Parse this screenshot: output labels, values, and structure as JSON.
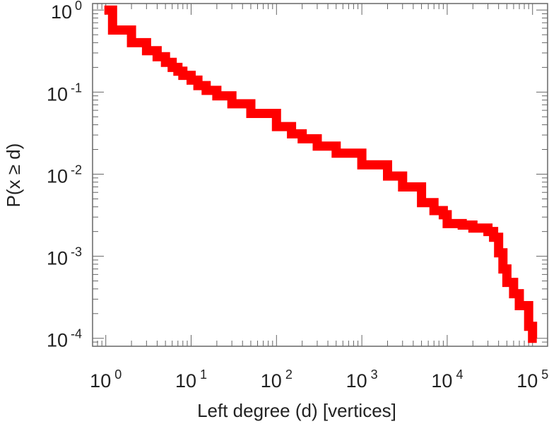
{
  "chart_data": {
    "type": "line",
    "title": "",
    "xlabel": "Left degree (d) [vertices]",
    "ylabel": "P(x ≥ d)",
    "xscale": "log",
    "yscale": "log",
    "xlim": [
      0.7,
      150000
    ],
    "ylim": [
      8e-05,
      1.2
    ],
    "grid": false,
    "legend": "none",
    "line_color": "#ff0000",
    "x_ticks": [
      {
        "base": "10",
        "exp": "0",
        "value": 1
      },
      {
        "base": "10",
        "exp": "1",
        "value": 10
      },
      {
        "base": "10",
        "exp": "2",
        "value": 100
      },
      {
        "base": "10",
        "exp": "3",
        "value": 1000
      },
      {
        "base": "10",
        "exp": "4",
        "value": 10000
      },
      {
        "base": "10",
        "exp": "5",
        "value": 100000
      }
    ],
    "y_ticks": [
      {
        "base": "10",
        "exp": "0",
        "value": 1
      },
      {
        "base": "10",
        "exp": "-1",
        "value": 0.1
      },
      {
        "base": "10",
        "exp": "-2",
        "value": 0.01
      },
      {
        "base": "10",
        "exp": "-3",
        "value": 0.001
      },
      {
        "base": "10",
        "exp": "-4",
        "value": 0.0001
      }
    ],
    "series": [
      {
        "name": "P(x ≥ d)",
        "x": [
          1,
          1.2,
          2,
          3,
          4,
          5,
          6,
          7,
          8,
          10,
          12,
          15,
          20,
          30,
          50,
          100,
          150,
          200,
          300,
          500,
          1000,
          2000,
          3000,
          5000,
          7000,
          9000,
          10000,
          12000,
          15000,
          20000,
          30000,
          35000,
          40000,
          45000,
          50000,
          60000,
          70000,
          90000,
          100000
        ],
        "y": [
          1.0,
          0.57,
          0.4,
          0.32,
          0.27,
          0.23,
          0.2,
          0.18,
          0.16,
          0.14,
          0.12,
          0.105,
          0.09,
          0.072,
          0.055,
          0.038,
          0.031,
          0.027,
          0.022,
          0.018,
          0.013,
          0.0095,
          0.007,
          0.0045,
          0.0036,
          0.0032,
          0.0025,
          0.0025,
          0.0024,
          0.0022,
          0.002,
          0.0017,
          0.0011,
          0.0007,
          0.00048,
          0.00035,
          0.00025,
          0.00014,
          0.0001
        ]
      }
    ]
  }
}
